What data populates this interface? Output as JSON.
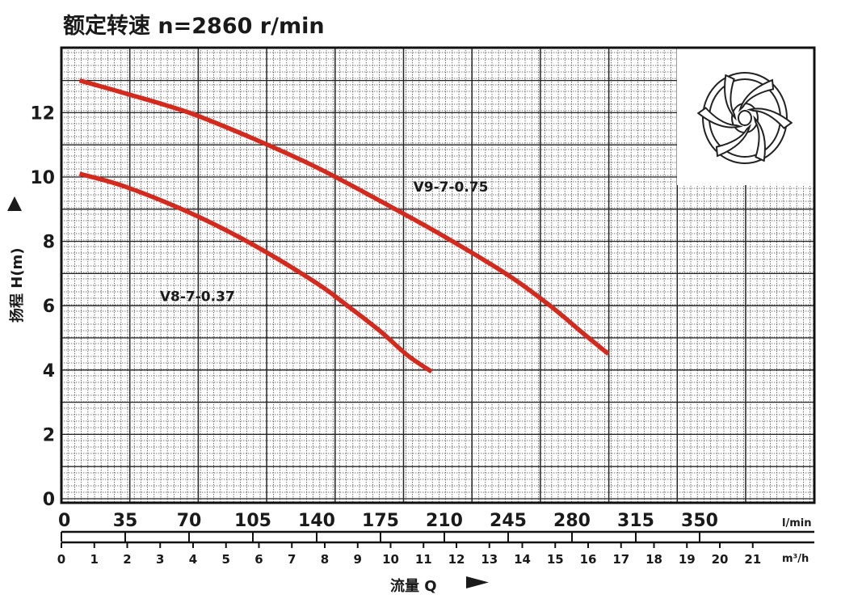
{
  "chart_data": {
    "type": "line",
    "title": "额定转速 n=2860 r/min",
    "ylabel": "扬程 H(m)",
    "xlabel": "流量 Q",
    "x_unit": "l/min",
    "x2_unit": "m³/h",
    "xlim": [
      0,
      385
    ],
    "ylim": [
      0,
      14
    ],
    "grid": true,
    "x_ticks": [
      "0",
      "35",
      "70",
      "105",
      "140",
      "175",
      "210",
      "245",
      "280",
      "315",
      "350"
    ],
    "x2_ticks": [
      "0",
      "1",
      "2",
      "3",
      "4",
      "5",
      "6",
      "7",
      "8",
      "9",
      "10",
      "11",
      "12",
      "13",
      "14",
      "15",
      "16",
      "17",
      "18",
      "19",
      "20",
      "21"
    ],
    "y_ticks": [
      "0",
      "2",
      "4",
      "6",
      "8",
      "10",
      "12"
    ],
    "series": [
      {
        "name": "V8-7-0.37",
        "color": "#d42a1e",
        "x": [
          10,
          35,
          70,
          105,
          140,
          158,
          175,
          190,
          203
        ],
        "y": [
          10.1,
          9.7,
          8.9,
          7.9,
          6.7,
          5.95,
          5.2,
          4.45,
          3.95
        ]
      },
      {
        "name": "V9-7-0.75",
        "color": "#d42a1e",
        "x": [
          10,
          35,
          70,
          105,
          140,
          175,
          210,
          245,
          268,
          287,
          300
        ],
        "y": [
          13.0,
          12.6,
          12.0,
          11.2,
          10.3,
          9.25,
          8.15,
          6.95,
          6.0,
          5.1,
          4.5
        ]
      }
    ],
    "annotations": [
      {
        "text": "V9-7-0.75",
        "x": 193,
        "y": 9.7
      },
      {
        "text": "V8-7-0.37",
        "x": 54,
        "y": 6.3
      }
    ]
  }
}
